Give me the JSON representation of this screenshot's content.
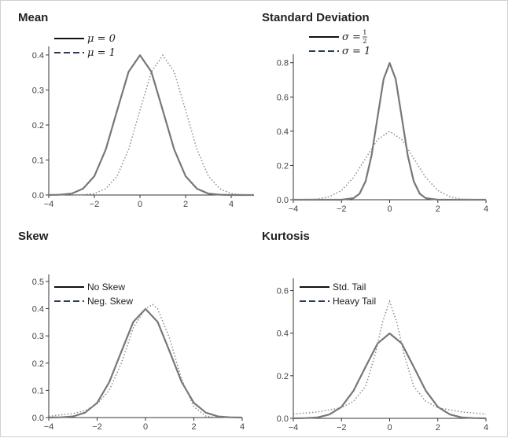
{
  "chart_data": [
    {
      "type": "line",
      "title": "Mean",
      "xlim": [
        -4,
        5
      ],
      "ylim": [
        0,
        0.42
      ],
      "xticks": [
        -4,
        -2,
        0,
        2,
        4
      ],
      "yticks": [
        0.0,
        0.1,
        0.2,
        0.3,
        0.4
      ],
      "ytick_labels": [
        "0.0",
        "0.1",
        "0.2",
        "0.3",
        "0.4"
      ],
      "legend_position": "top-left",
      "series": [
        {
          "name": "μ = 0",
          "style": "solid",
          "x": [
            -4,
            -3.5,
            -3,
            -2.5,
            -2,
            -1.5,
            -1,
            -0.5,
            0,
            0.5,
            1,
            1.5,
            2,
            2.5,
            3,
            3.5,
            4,
            4.5,
            5
          ],
          "y": [
            0.0,
            0.001,
            0.004,
            0.018,
            0.054,
            0.13,
            0.242,
            0.352,
            0.399,
            0.352,
            0.242,
            0.13,
            0.054,
            0.018,
            0.004,
            0.001,
            0.0,
            0.0,
            0.0
          ]
        },
        {
          "name": "μ = 1",
          "style": "dotted",
          "x": [
            -4,
            -3.5,
            -3,
            -2.5,
            -2,
            -1.5,
            -1,
            -0.5,
            0,
            0.5,
            1,
            1.5,
            2,
            2.5,
            3,
            3.5,
            4,
            4.5,
            5
          ],
          "y": [
            0.0,
            0.0,
            0.0,
            0.001,
            0.004,
            0.018,
            0.054,
            0.13,
            0.242,
            0.352,
            0.399,
            0.352,
            0.242,
            0.13,
            0.054,
            0.018,
            0.004,
            0.001,
            0.0
          ]
        }
      ]
    },
    {
      "type": "line",
      "title": "Standard Deviation",
      "xlim": [
        -4,
        4
      ],
      "ylim": [
        0,
        0.84
      ],
      "xticks": [
        -4,
        -2,
        0,
        2,
        4
      ],
      "yticks": [
        0.0,
        0.2,
        0.4,
        0.6,
        0.8
      ],
      "ytick_labels": [
        "0.0",
        "0.2",
        "0.4",
        "0.6",
        "0.8"
      ],
      "legend_position": "top-center",
      "series": [
        {
          "name": "σ = 1/2",
          "style": "solid",
          "x": [
            -4,
            -2,
            -1.5,
            -1.25,
            -1,
            -0.75,
            -0.5,
            -0.25,
            0,
            0.25,
            0.5,
            0.75,
            1,
            1.25,
            1.5,
            2,
            4
          ],
          "y": [
            0.0,
            0.0,
            0.009,
            0.035,
            0.108,
            0.259,
            0.484,
            0.704,
            0.798,
            0.704,
            0.484,
            0.259,
            0.108,
            0.035,
            0.009,
            0.0,
            0.0
          ]
        },
        {
          "name": "σ = 1",
          "style": "dotted",
          "x": [
            -4,
            -3.5,
            -3,
            -2.5,
            -2,
            -1.5,
            -1,
            -0.5,
            0,
            0.5,
            1,
            1.5,
            2,
            2.5,
            3,
            3.5,
            4
          ],
          "y": [
            0.0,
            0.001,
            0.004,
            0.018,
            0.054,
            0.13,
            0.242,
            0.352,
            0.399,
            0.352,
            0.242,
            0.13,
            0.054,
            0.018,
            0.004,
            0.001,
            0.0
          ]
        }
      ]
    },
    {
      "type": "line",
      "title": "Skew",
      "xlim": [
        -4,
        4
      ],
      "ylim": [
        0,
        0.52
      ],
      "xticks": [
        -4,
        -2,
        0,
        2,
        4
      ],
      "yticks": [
        0.0,
        0.1,
        0.2,
        0.3,
        0.4,
        0.5
      ],
      "ytick_labels": [
        "0.0",
        "0.1",
        "0.2",
        "0.3",
        "0.4",
        "0.5"
      ],
      "legend_position": "top-left",
      "series": [
        {
          "name": "No Skew",
          "style": "solid",
          "x": [
            -4,
            -3.5,
            -3,
            -2.5,
            -2,
            -1.5,
            -1,
            -0.5,
            0,
            0.5,
            1,
            1.5,
            2,
            2.5,
            3,
            3.5,
            4
          ],
          "y": [
            0.0,
            0.001,
            0.004,
            0.018,
            0.054,
            0.13,
            0.242,
            0.352,
            0.399,
            0.352,
            0.242,
            0.13,
            0.054,
            0.018,
            0.004,
            0.001,
            0.0
          ]
        },
        {
          "name": "Neg. Skew",
          "style": "dotted",
          "x": [
            -4,
            -3.5,
            -3,
            -2.5,
            -2,
            -1.5,
            -1,
            -0.5,
            0,
            0.3,
            0.5,
            1,
            1.5,
            2,
            2.5,
            3,
            4
          ],
          "y": [
            0.005,
            0.01,
            0.015,
            0.025,
            0.05,
            0.1,
            0.2,
            0.33,
            0.4,
            0.415,
            0.4,
            0.29,
            0.14,
            0.04,
            0.005,
            0.0,
            0.0
          ]
        }
      ]
    },
    {
      "type": "line",
      "title": "Kurtosis",
      "xlim": [
        -4,
        4
      ],
      "ylim": [
        0,
        0.65
      ],
      "xticks": [
        -4,
        -2,
        0,
        2,
        4
      ],
      "yticks": [
        0.0,
        0.2,
        0.4,
        0.6
      ],
      "ytick_labels": [
        "0.0",
        "0.2",
        "0.4",
        "0.6"
      ],
      "legend_position": "top-left",
      "series": [
        {
          "name": "Std. Tail",
          "style": "solid",
          "x": [
            -4,
            -3.5,
            -3,
            -2.5,
            -2,
            -1.5,
            -1,
            -0.5,
            0,
            0.5,
            1,
            1.5,
            2,
            2.5,
            3,
            3.5,
            4
          ],
          "y": [
            0.0,
            0.001,
            0.004,
            0.018,
            0.054,
            0.13,
            0.242,
            0.352,
            0.399,
            0.352,
            0.242,
            0.13,
            0.054,
            0.018,
            0.004,
            0.001,
            0.0
          ]
        },
        {
          "name": "Heavy Tail",
          "style": "dotted",
          "x": [
            -4,
            -3,
            -2,
            -1.5,
            -1,
            -0.6,
            -0.3,
            0,
            0.3,
            0.6,
            1,
            1.5,
            2,
            3,
            4
          ],
          "y": [
            0.02,
            0.03,
            0.05,
            0.08,
            0.15,
            0.3,
            0.45,
            0.55,
            0.45,
            0.3,
            0.15,
            0.08,
            0.05,
            0.03,
            0.02
          ]
        }
      ]
    }
  ]
}
